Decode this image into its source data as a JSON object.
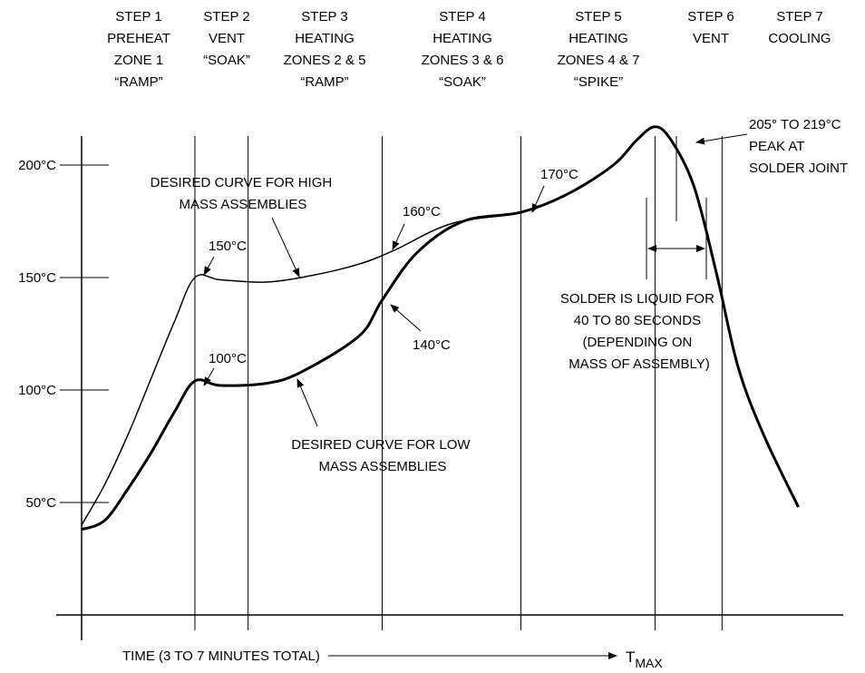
{
  "chart_data": {
    "type": "line",
    "title": "",
    "xlabel": "TIME (3 TO 7 MINUTES TOTAL)",
    "xmax_label_main": "T",
    "xmax_label_sub": "MAX",
    "ylabel": "",
    "ylim": [
      0,
      225
    ],
    "y_ticks": [
      {
        "value": 50,
        "label": "50°C"
      },
      {
        "value": 100,
        "label": "100°C"
      },
      {
        "value": 150,
        "label": "150°C"
      },
      {
        "value": 200,
        "label": "200°C"
      }
    ],
    "steps": [
      {
        "x": 0.0,
        "lines": [
          "STEP 1",
          "PREHEAT",
          "ZONE 1",
          "“RAMP”"
        ]
      },
      {
        "x": 0.49,
        "lines": [
          "STEP 2",
          "VENT",
          "“SOAK”"
        ]
      },
      {
        "x": 0.72,
        "lines": [
          "STEP 3",
          "HEATING",
          "ZONES 2 & 5",
          "“RAMP”"
        ]
      },
      {
        "x": 1.3,
        "lines": [
          "STEP 4",
          "HEATING",
          "ZONES 3 & 6",
          "“SOAK”"
        ]
      },
      {
        "x": 1.9,
        "lines": [
          "STEP 5",
          "HEATING",
          "ZONES 4 & 7",
          "“SPIKE”"
        ]
      },
      {
        "x": 2.48,
        "lines": [
          "STEP 6",
          "VENT"
        ]
      },
      {
        "x": 2.77,
        "lines": [
          "STEP 7",
          "COOLING"
        ]
      }
    ],
    "step_boundaries": [
      0.49,
      0.72,
      1.3,
      1.9,
      2.48,
      2.77
    ],
    "series": [
      {
        "points": [
          [
            0.0,
            40
          ],
          [
            0.1,
            58
          ],
          [
            0.2,
            80
          ],
          [
            0.3,
            105
          ],
          [
            0.4,
            130
          ],
          [
            0.49,
            150
          ],
          [
            0.6,
            149
          ],
          [
            0.8,
            148
          ],
          [
            1.0,
            151
          ],
          [
            1.2,
            156
          ],
          [
            1.35,
            162
          ],
          [
            1.6,
            174
          ],
          [
            1.9,
            179
          ],
          [
            2.1,
            187
          ],
          [
            2.3,
            200
          ],
          [
            2.4,
            211
          ],
          [
            2.48,
            217
          ],
          [
            2.55,
            211
          ],
          [
            2.65,
            190
          ],
          [
            2.75,
            150
          ],
          [
            2.84,
            110
          ],
          [
            2.95,
            80
          ],
          [
            3.1,
            48
          ]
        ]
      },
      {
        "points": [
          [
            0.0,
            38
          ],
          [
            0.1,
            42
          ],
          [
            0.2,
            56
          ],
          [
            0.3,
            72
          ],
          [
            0.4,
            90
          ],
          [
            0.49,
            104
          ],
          [
            0.6,
            102
          ],
          [
            0.8,
            103
          ],
          [
            0.95,
            108
          ],
          [
            1.2,
            124
          ],
          [
            1.3,
            140
          ],
          [
            1.45,
            161
          ],
          [
            1.65,
            175
          ],
          [
            1.9,
            179
          ],
          [
            2.1,
            187
          ],
          [
            2.3,
            200
          ],
          [
            2.4,
            211
          ],
          [
            2.48,
            217
          ],
          [
            2.55,
            211
          ],
          [
            2.65,
            190
          ],
          [
            2.75,
            150
          ],
          [
            2.84,
            110
          ],
          [
            2.95,
            80
          ],
          [
            3.1,
            48
          ]
        ]
      }
    ],
    "annotations": {
      "high_mass_label": [
        "DESIRED CURVE FOR HIGH",
        "MASS ASSEMBLIES"
      ],
      "low_mass_label": [
        "DESIRED CURVE FOR LOW",
        "MASS ASSEMBLIES"
      ],
      "label_150": "150°C",
      "label_100": "100°C",
      "label_160": "160°C",
      "label_140": "140°C",
      "label_170": "170°C",
      "peak_label": [
        "205° TO 219°C",
        "PEAK AT",
        "SOLDER JOINT"
      ],
      "liquid_label": [
        "SOLDER IS LIQUID FOR",
        "40 TO 80 SECONDS",
        "(DEPENDING ON",
        "MASS OF ASSEMBLY)"
      ]
    }
  }
}
